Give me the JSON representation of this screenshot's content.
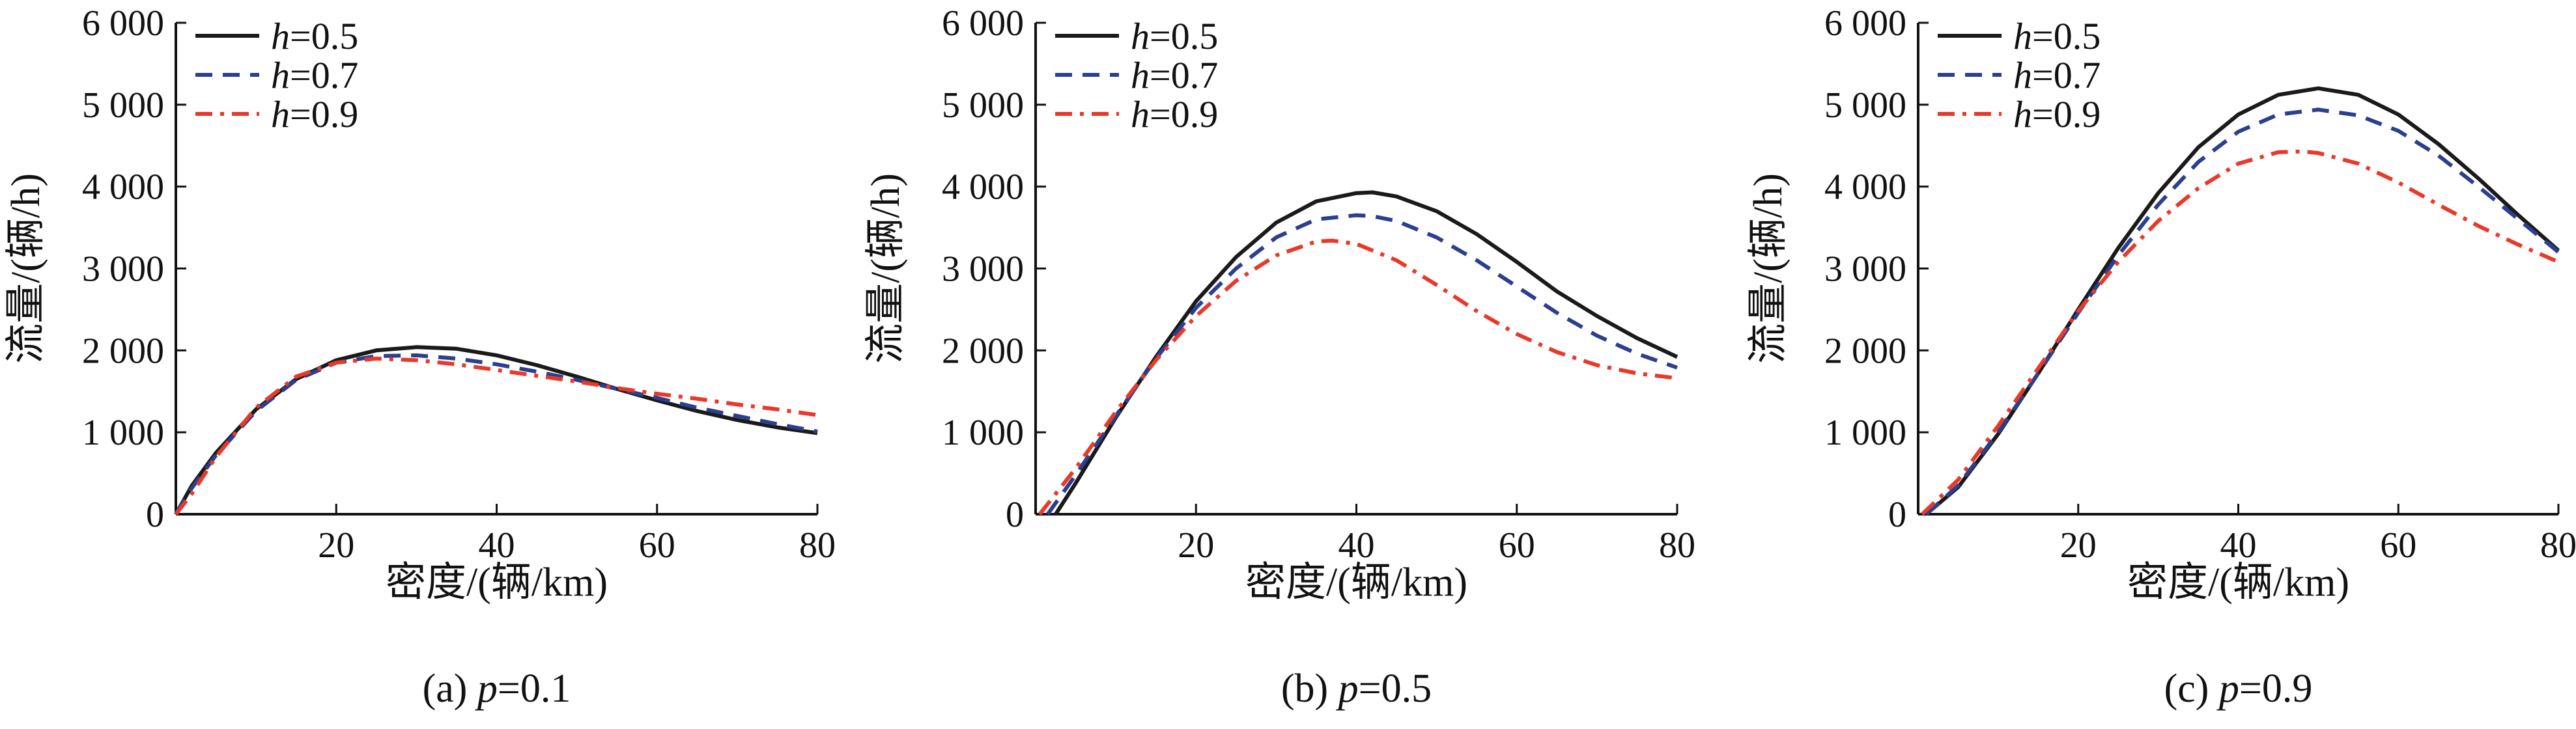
{
  "chart_data": [
    {
      "type": "line",
      "caption": "(a) p=0.1",
      "caption_prefix": "(a) ",
      "caption_var": "p",
      "caption_value": "=0.1",
      "xlabel": "密度/(辆/km)",
      "ylabel": "流量/(辆/h)",
      "xlim": [
        0,
        80
      ],
      "ylim": [
        0,
        6000
      ],
      "xticks": [
        "20",
        "40",
        "60",
        "80"
      ],
      "yticks": [
        "0",
        "1 000",
        "2 000",
        "3 000",
        "4 000",
        "5 000",
        "6 000"
      ],
      "legend_position": "top-left",
      "series": [
        {
          "name": "h=0.5",
          "var": "h",
          "value": "=0.5",
          "color": "#1a1a1a",
          "dash": "solid",
          "x": [
            0,
            2,
            5,
            10,
            15,
            20,
            25,
            30,
            35,
            40,
            45,
            50,
            55,
            60,
            65,
            70,
            75,
            80
          ],
          "y": [
            0,
            350,
            750,
            1280,
            1650,
            1880,
            2000,
            2040,
            2020,
            1940,
            1820,
            1680,
            1530,
            1390,
            1260,
            1150,
            1060,
            990
          ]
        },
        {
          "name": "h=0.7",
          "var": "h",
          "value": "=0.7",
          "color": "#2b3f8f",
          "dash": "dashed",
          "x": [
            0,
            2,
            5,
            10,
            15,
            20,
            25,
            30,
            35,
            40,
            45,
            50,
            55,
            60,
            65,
            70,
            75,
            80
          ],
          "y": [
            0,
            320,
            720,
            1260,
            1640,
            1850,
            1930,
            1940,
            1900,
            1830,
            1740,
            1640,
            1530,
            1420,
            1300,
            1200,
            1100,
            1010
          ]
        },
        {
          "name": "h=0.9",
          "var": "h",
          "value": "=0.9",
          "color": "#e8392b",
          "dash": "dashdot",
          "x": [
            0,
            2,
            5,
            10,
            15,
            20,
            25,
            30,
            35,
            40,
            45,
            50,
            55,
            60,
            65,
            70,
            75,
            80
          ],
          "y": [
            0,
            250,
            700,
            1300,
            1680,
            1850,
            1900,
            1880,
            1830,
            1760,
            1690,
            1620,
            1540,
            1470,
            1410,
            1340,
            1280,
            1210
          ]
        }
      ]
    },
    {
      "type": "line",
      "caption": "(b) p=0.5",
      "caption_prefix": "(b) ",
      "caption_var": "p",
      "caption_value": "=0.5",
      "xlabel": "密度/(辆/km)",
      "ylabel": "流量/(辆/h)",
      "xlim": [
        0,
        80
      ],
      "ylim": [
        0,
        6000
      ],
      "xticks": [
        "20",
        "40",
        "60",
        "80"
      ],
      "yticks": [
        "0",
        "1 000",
        "2 000",
        "3 000",
        "4 000",
        "5 000",
        "6 000"
      ],
      "legend_position": "top-left",
      "series": [
        {
          "name": "h=0.5",
          "var": "h",
          "value": "=0.5",
          "color": "#1a1a1a",
          "dash": "solid",
          "x": [
            2.5,
            5,
            10,
            15,
            20,
            25,
            30,
            35,
            40,
            42,
            45,
            50,
            55,
            60,
            65,
            70,
            75,
            80
          ],
          "y": [
            0,
            380,
            1180,
            1920,
            2600,
            3140,
            3560,
            3820,
            3920,
            3930,
            3880,
            3700,
            3420,
            3080,
            2720,
            2420,
            2150,
            1920
          ]
        },
        {
          "name": "h=0.7",
          "var": "h",
          "value": "=0.7",
          "color": "#2b3f8f",
          "dash": "dashed",
          "x": [
            1.5,
            5,
            10,
            15,
            20,
            25,
            30,
            35,
            40,
            42,
            45,
            50,
            55,
            60,
            65,
            70,
            75,
            80
          ],
          "y": [
            0,
            480,
            1200,
            1900,
            2520,
            3000,
            3380,
            3600,
            3650,
            3640,
            3580,
            3380,
            3100,
            2780,
            2460,
            2180,
            1960,
            1790
          ]
        },
        {
          "name": "h=0.9",
          "var": "h",
          "value": "=0.9",
          "color": "#e8392b",
          "dash": "dashdot",
          "x": [
            0.5,
            5,
            10,
            15,
            20,
            25,
            30,
            35,
            37,
            40,
            45,
            50,
            55,
            60,
            65,
            70,
            75,
            80
          ],
          "y": [
            0,
            560,
            1250,
            1880,
            2420,
            2850,
            3160,
            3330,
            3340,
            3300,
            3100,
            2800,
            2480,
            2200,
            1980,
            1820,
            1720,
            1660
          ]
        }
      ]
    },
    {
      "type": "line",
      "caption": "(c) p=0.9",
      "caption_prefix": "(c) ",
      "caption_var": "p",
      "caption_value": "=0.9",
      "xlabel": "密度/(辆/km)",
      "ylabel": "流量/(辆/h)",
      "xlim": [
        0,
        80
      ],
      "ylim": [
        0,
        6000
      ],
      "xticks": [
        "20",
        "40",
        "60",
        "80"
      ],
      "yticks": [
        "0",
        "1 000",
        "2 000",
        "3 000",
        "4 000",
        "5 000",
        "6 000"
      ],
      "legend_position": "top-left",
      "series": [
        {
          "name": "h=0.5",
          "var": "h",
          "value": "=0.5",
          "color": "#1a1a1a",
          "dash": "solid",
          "x": [
            1,
            5,
            10,
            15,
            20,
            25,
            30,
            35,
            40,
            45,
            50,
            55,
            60,
            65,
            70,
            75,
            80
          ],
          "y": [
            0,
            330,
            980,
            1720,
            2500,
            3250,
            3920,
            4480,
            4880,
            5120,
            5200,
            5120,
            4880,
            4520,
            4100,
            3650,
            3220
          ]
        },
        {
          "name": "h=0.7",
          "var": "h",
          "value": "=0.7",
          "color": "#2b3f8f",
          "dash": "dashed",
          "x": [
            1,
            5,
            10,
            15,
            20,
            25,
            30,
            35,
            40,
            45,
            50,
            55,
            60,
            65,
            70,
            75,
            80
          ],
          "y": [
            0,
            350,
            1000,
            1720,
            2460,
            3160,
            3780,
            4300,
            4670,
            4880,
            4940,
            4870,
            4680,
            4380,
            4000,
            3600,
            3200
          ]
        },
        {
          "name": "h=0.9",
          "var": "h",
          "value": "=0.9",
          "color": "#e8392b",
          "dash": "dashdot",
          "x": [
            0.5,
            5,
            10,
            15,
            20,
            25,
            30,
            35,
            40,
            45,
            48,
            50,
            55,
            60,
            65,
            70,
            75,
            80
          ],
          "y": [
            0,
            420,
            1080,
            1780,
            2480,
            3080,
            3580,
            3980,
            4280,
            4420,
            4430,
            4410,
            4280,
            4050,
            3780,
            3520,
            3290,
            3080
          ]
        }
      ]
    }
  ]
}
